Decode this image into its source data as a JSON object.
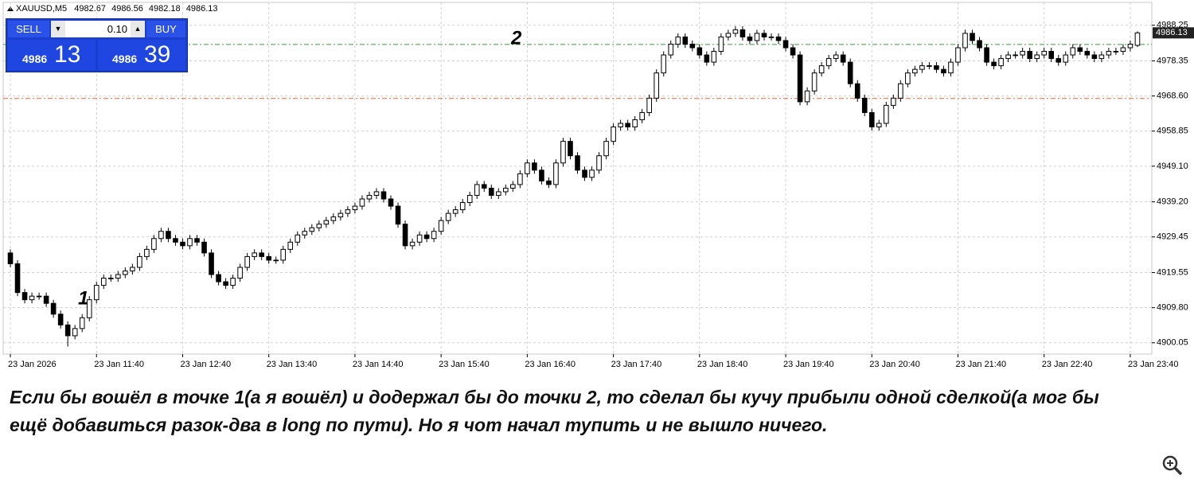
{
  "chart_data": {
    "type": "candlestick",
    "symbol": "XAUUSD,M5",
    "open": [
      4925,
      4922,
      4914,
      4912,
      4913,
      4913,
      4911,
      4908,
      4905,
      4902,
      4904,
      4907,
      4912,
      4916,
      4918,
      4918,
      4919,
      4920,
      4921,
      4924,
      4926,
      4929,
      4931,
      4929,
      4928,
      4927,
      4929,
      4928,
      4925,
      4919,
      4917,
      4916,
      4918,
      4921,
      4924,
      4925,
      4924,
      4923,
      4923,
      4926,
      4928,
      4930,
      4931,
      4932,
      4933,
      4934,
      4935,
      4936,
      4937,
      4938,
      4940,
      4941,
      4942,
      4940,
      4938,
      4933,
      4927,
      4928,
      4930,
      4929,
      4931,
      4934,
      4936,
      4937,
      4939,
      4941,
      4944,
      4943,
      4941,
      4942,
      4943,
      4944,
      4947,
      4950,
      4948,
      4945,
      4944,
      4950,
      4956,
      4952,
      4948,
      4946,
      4948,
      4952,
      4956,
      4960,
      4961,
      4960,
      4962,
      4964,
      4968,
      4975,
      4980,
      4983,
      4985,
      4983,
      4982,
      4980,
      4978,
      4981,
      4985,
      4986,
      4987,
      4985,
      4984,
      4986,
      4985,
      4985,
      4984,
      4982,
      4980,
      4967,
      4970,
      4975,
      4977,
      4979,
      4980,
      4978,
      4972,
      4968,
      4964,
      4960,
      4961,
      4966,
      4968,
      4972,
      4975,
      4976,
      4977,
      4977,
      4976,
      4975,
      4978,
      4982,
      4986,
      4984,
      4982,
      4978,
      4977,
      4979,
      4980,
      4980,
      4981,
      4979,
      4980,
      4981,
      4979,
      4978,
      4980,
      4982,
      4981,
      4980,
      4979,
      4980,
      4981,
      4981,
      4982,
      4982.67
    ],
    "high": [
      4926,
      4923,
      4915,
      4914,
      4914,
      4914,
      4912,
      4909,
      4906,
      4905,
      4908,
      4913,
      4917,
      4919,
      4919,
      4920,
      4921,
      4922,
      4925,
      4927,
      4930,
      4932,
      4932,
      4930,
      4929,
      4930,
      4930,
      4929,
      4926,
      4920,
      4918,
      4919,
      4922,
      4925,
      4926,
      4926,
      4925,
      4924,
      4927,
      4929,
      4931,
      4932,
      4933,
      4934,
      4935,
      4936,
      4937,
      4938,
      4939,
      4941,
      4942,
      4943,
      4943,
      4941,
      4939,
      4934,
      4929,
      4931,
      4931,
      4932,
      4935,
      4937,
      4938,
      4940,
      4942,
      4945,
      4945,
      4944,
      4943,
      4944,
      4945,
      4948,
      4951,
      4951,
      4949,
      4946,
      4951,
      4957,
      4957,
      4953,
      4949,
      4949,
      4953,
      4957,
      4961,
      4962,
      4962,
      4963,
      4965,
      4969,
      4976,
      4981,
      4984,
      4986,
      4986,
      4984,
      4983,
      4981,
      4982,
      4986,
      4987,
      4988,
      4988,
      4986,
      4987,
      4987,
      4986,
      4986,
      4985,
      4983,
      4981,
      4971,
      4976,
      4978,
      4980,
      4981,
      4981,
      4979,
      4973,
      4969,
      4965,
      4962,
      4967,
      4969,
      4973,
      4976,
      4977,
      4978,
      4978,
      4978,
      4977,
      4979,
      4983,
      4987,
      4987,
      4985,
      4983,
      4979,
      4980,
      4981,
      4981,
      4982,
      4982,
      4981,
      4982,
      4982,
      4980,
      4981,
      4983,
      4983,
      4982,
      4981,
      4981,
      4982,
      4982,
      4983,
      4984,
      4986.56
    ],
    "low": [
      4921,
      4913,
      4911,
      4911,
      4912,
      4910,
      4907,
      4904,
      4899,
      4901,
      4903,
      4906,
      4911,
      4915,
      4917,
      4917,
      4918,
      4919,
      4920,
      4923,
      4925,
      4928,
      4928,
      4927,
      4926,
      4926,
      4927,
      4924,
      4918,
      4916,
      4915,
      4915,
      4917,
      4920,
      4923,
      4923,
      4922,
      4922,
      4922,
      4925,
      4927,
      4929,
      4930,
      4931,
      4932,
      4933,
      4934,
      4935,
      4936,
      4937,
      4939,
      4940,
      4939,
      4937,
      4932,
      4926,
      4926,
      4927,
      4928,
      4928,
      4930,
      4933,
      4935,
      4936,
      4938,
      4940,
      4942,
      4940,
      4940,
      4941,
      4942,
      4943,
      4946,
      4947,
      4944,
      4943,
      4943,
      4949,
      4951,
      4947,
      4945,
      4945,
      4947,
      4951,
      4955,
      4959,
      4959,
      4959,
      4961,
      4963,
      4967,
      4974,
      4979,
      4982,
      4982,
      4981,
      4979,
      4977,
      4977,
      4980,
      4984,
      4985,
      4984,
      4983,
      4983,
      4984,
      4984,
      4983,
      4981,
      4979,
      4966,
      4966,
      4969,
      4974,
      4976,
      4978,
      4977,
      4971,
      4967,
      4963,
      4959,
      4959,
      4960,
      4965,
      4967,
      4971,
      4974,
      4975,
      4976,
      4975,
      4974,
      4974,
      4977,
      4981,
      4983,
      4981,
      4977,
      4976,
      4976,
      4978,
      4979,
      4979,
      4978,
      4978,
      4979,
      4978,
      4977,
      4977,
      4979,
      4980,
      4979,
      4978,
      4978,
      4979,
      4980,
      4980,
      4981,
      4982.18
    ],
    "close": [
      4922,
      4914,
      4912,
      4913,
      4913,
      4911,
      4908,
      4905,
      4902,
      4904,
      4907,
      4912,
      4916,
      4918,
      4918,
      4919,
      4920,
      4921,
      4924,
      4926,
      4929,
      4931,
      4929,
      4928,
      4927,
      4929,
      4928,
      4925,
      4919,
      4917,
      4916,
      4918,
      4921,
      4924,
      4925,
      4924,
      4923,
      4923,
      4926,
      4928,
      4930,
      4931,
      4932,
      4933,
      4934,
      4935,
      4936,
      4937,
      4938,
      4940,
      4941,
      4942,
      4940,
      4938,
      4933,
      4927,
      4928,
      4930,
      4929,
      4931,
      4934,
      4936,
      4937,
      4939,
      4941,
      4944,
      4943,
      4941,
      4942,
      4943,
      4944,
      4947,
      4950,
      4948,
      4945,
      4944,
      4950,
      4956,
      4952,
      4948,
      4946,
      4948,
      4952,
      4956,
      4960,
      4961,
      4960,
      4962,
      4964,
      4968,
      4975,
      4980,
      4983,
      4985,
      4983,
      4982,
      4980,
      4978,
      4981,
      4985,
      4986,
      4987,
      4985,
      4984,
      4986,
      4985,
      4985,
      4984,
      4982,
      4980,
      4967,
      4970,
      4975,
      4977,
      4979,
      4980,
      4978,
      4972,
      4968,
      4964,
      4960,
      4961,
      4966,
      4968,
      4972,
      4975,
      4976,
      4977,
      4977,
      4976,
      4975,
      4978,
      4982,
      4986,
      4984,
      4982,
      4978,
      4977,
      4979,
      4980,
      4980,
      4981,
      4979,
      4980,
      4981,
      4979,
      4978,
      4980,
      4982,
      4981,
      4980,
      4979,
      4980,
      4981,
      4981,
      4982,
      4983,
      4986.13
    ],
    "bull_color": "#ffffff",
    "bear_color": "#000000",
    "wick_color": "#000000",
    "xlim": [
      -1,
      159
    ],
    "xticks": [
      {
        "value": 0,
        "label": "23 Jan 2026"
      },
      {
        "value": 12,
        "label": "23 Jan 11:40"
      },
      {
        "value": 24,
        "label": "23 Jan 12:40"
      },
      {
        "value": 36,
        "label": "23 Jan 13:40"
      },
      {
        "value": 48,
        "label": "23 Jan 14:40"
      },
      {
        "value": 60,
        "label": "23 Jan 15:40"
      },
      {
        "value": 72,
        "label": "23 Jan 16:40"
      },
      {
        "value": 84,
        "label": "23 Jan 17:40"
      },
      {
        "value": 96,
        "label": "23 Jan 18:40"
      },
      {
        "value": 108,
        "label": "23 Jan 19:40"
      },
      {
        "value": 120,
        "label": "23 Jan 20:40"
      },
      {
        "value": 132,
        "label": "23 Jan 21:40"
      },
      {
        "value": 144,
        "label": "23 Jan 22:40"
      },
      {
        "value": 156,
        "label": "23 Jan 23:40"
      }
    ],
    "ylim": [
      4896.9,
      4994.6
    ],
    "yticks": [
      4900.05,
      {
        "value": 4909.8,
        "label": "4909.80"
      },
      4919.55,
      4929.45,
      {
        "value": 4939.2,
        "label": "4939.20"
      },
      {
        "value": 4949.1,
        "label": "4949.10"
      },
      4958.85,
      {
        "value": 4968.6,
        "label": "4968.60"
      },
      4978.35,
      4988.25
    ],
    "grid": true,
    "levels": [
      {
        "value": 4982.9,
        "color": "#3a9a3a"
      },
      {
        "value": 4967.9,
        "color": "#e8663a"
      }
    ],
    "annotations": [
      "1",
      "2"
    ],
    "trade_panel": {
      "sell": "SELL",
      "buy": "BUY",
      "lot": "0.10",
      "bid_big": "4986",
      "bid_small": "13",
      "ask_big": "4986",
      "ask_small": "39"
    }
  },
  "caption": [
    "Если бы вошёл в точке 1(а я вошёл) и додержал бы до точки 2, то сделал бы кучу прибыли одной сделкой(а мог бы",
    "ещё добавиться разок-два в long по пути). Но я чот начал тупить и не вышло ничего."
  ]
}
